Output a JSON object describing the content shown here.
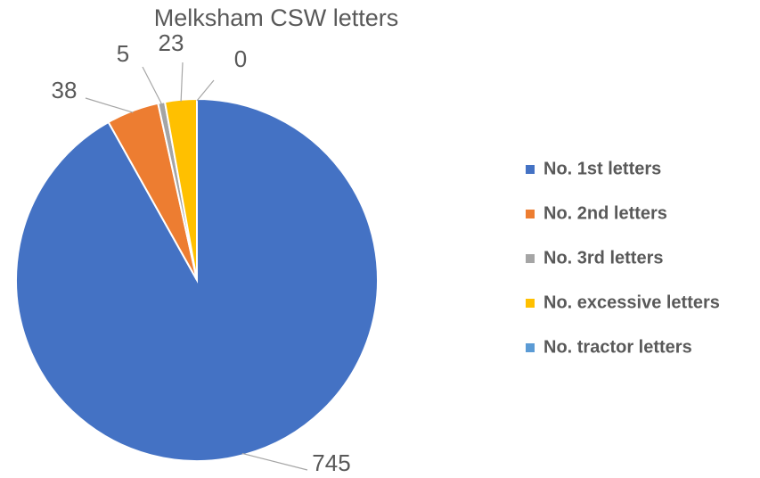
{
  "chart_data": {
    "type": "pie",
    "title": "Melksham CSW letters",
    "categories": [
      "No. 1st letters",
      "No. 2nd letters",
      "No. 3rd letters",
      "No. excessive letters",
      "No. tractor letters"
    ],
    "values": [
      745,
      38,
      5,
      23,
      0
    ],
    "colors": [
      "#4472c4",
      "#ed7d31",
      "#a5a5a5",
      "#ffc000",
      "#5b9bd5"
    ],
    "legend": "right"
  }
}
